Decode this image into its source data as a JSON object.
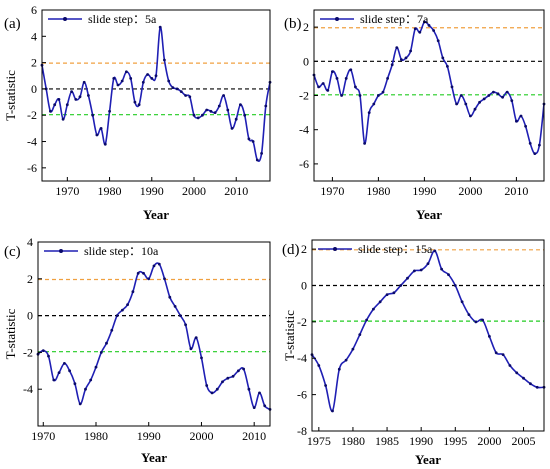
{
  "colors": {
    "series": "#1f1fb4",
    "upper_line": "#f0a040",
    "lower_line": "#22cc22",
    "zero_line": "#000000"
  },
  "chart_data": [
    {
      "type": "line",
      "panel_label": "(a)",
      "legend": "slide step：5a",
      "legend_position": "top-left",
      "xlabel": "Year",
      "ylabel": "T-statistic",
      "xlim": [
        1964,
        2018
      ],
      "ylim": [
        -7,
        6
      ],
      "xticks": [
        1970,
        1980,
        1990,
        2000,
        2010
      ],
      "yticks": [
        -6,
        -4,
        -2,
        0,
        2,
        4,
        6
      ],
      "reference_lines": [
        1.96,
        0,
        -1.96
      ],
      "x": [
        1964,
        1965,
        1966,
        1967,
        1968,
        1969,
        1970,
        1971,
        1972,
        1973,
        1974,
        1975,
        1976,
        1977,
        1978,
        1979,
        1980,
        1981,
        1982,
        1983,
        1984,
        1985,
        1986,
        1987,
        1988,
        1989,
        1990,
        1991,
        1992,
        1993,
        1994,
        1995,
        1996,
        1997,
        1998,
        1999,
        2000,
        2001,
        2002,
        2003,
        2004,
        2005,
        2006,
        2007,
        2008,
        2009,
        2010,
        2011,
        2012,
        2013,
        2014,
        2015,
        2016,
        2017,
        2018
      ],
      "y": [
        1.8,
        0.0,
        -1.7,
        -1.2,
        -0.8,
        -2.3,
        -1.2,
        -0.2,
        -0.8,
        -0.6,
        0.5,
        -0.5,
        -2.0,
        -3.5,
        -3.0,
        -4.2,
        -1.7,
        0.8,
        0.3,
        0.6,
        1.3,
        0.8,
        -1.0,
        -1.2,
        0.5,
        1.1,
        0.8,
        1.0,
        4.7,
        2.2,
        0.6,
        0.1,
        0.0,
        -0.2,
        -0.5,
        -0.6,
        -2.0,
        -2.2,
        -2.0,
        -1.6,
        -1.7,
        -1.8,
        -1.3,
        -0.5,
        -1.6,
        -3.0,
        -2.3,
        -1.2,
        -2.0,
        -3.8,
        -4.0,
        -5.4,
        -4.9,
        -1.3,
        0.5
      ]
    },
    {
      "type": "line",
      "panel_label": "(b)",
      "legend": "slide step：7a",
      "legend_position": "top-left",
      "xlabel": "Year",
      "ylabel": "",
      "xlim": [
        1966,
        2016
      ],
      "ylim": [
        -7,
        3
      ],
      "xticks": [
        1970,
        1980,
        1990,
        2000,
        2010
      ],
      "yticks": [
        -6,
        -4,
        -2,
        0,
        2
      ],
      "reference_lines": [
        1.96,
        0,
        -1.96
      ],
      "x": [
        1966,
        1967,
        1968,
        1969,
        1970,
        1971,
        1972,
        1973,
        1974,
        1975,
        1976,
        1977,
        1978,
        1979,
        1980,
        1981,
        1982,
        1983,
        1984,
        1985,
        1986,
        1987,
        1988,
        1989,
        1990,
        1991,
        1992,
        1993,
        1994,
        1995,
        1996,
        1997,
        1998,
        1999,
        2000,
        2001,
        2002,
        2003,
        2004,
        2005,
        2006,
        2007,
        2008,
        2009,
        2010,
        2011,
        2012,
        2013,
        2014,
        2015,
        2016
      ],
      "y": [
        -0.8,
        -1.5,
        -1.3,
        -1.7,
        -0.6,
        -1.0,
        -2.0,
        -1.0,
        -0.5,
        -1.5,
        -2.0,
        -4.8,
        -3.0,
        -2.5,
        -2.0,
        -1.8,
        -1.0,
        -0.2,
        0.8,
        0.1,
        0.2,
        0.6,
        1.9,
        1.7,
        2.3,
        2.1,
        1.8,
        1.2,
        0.2,
        -0.3,
        -1.5,
        -2.5,
        -2.0,
        -2.5,
        -3.2,
        -2.8,
        -2.4,
        -2.2,
        -2.0,
        -1.8,
        -1.9,
        -2.1,
        -1.8,
        -2.3,
        -3.5,
        -3.2,
        -3.8,
        -4.8,
        -5.4,
        -4.9,
        -2.5
      ]
    },
    {
      "type": "line",
      "panel_label": "(c)",
      "legend": "slide step：10a",
      "legend_position": "top-left",
      "xlabel": "Year",
      "ylabel": "T-statistic",
      "xlim": [
        1969,
        2013
      ],
      "ylim": [
        -6,
        4
      ],
      "xticks": [
        1970,
        1980,
        1990,
        2000,
        2010
      ],
      "yticks": [
        -4,
        -2,
        0,
        2,
        4
      ],
      "reference_lines": [
        1.96,
        0,
        -1.96
      ],
      "x": [
        1969,
        1970,
        1971,
        1972,
        1973,
        1974,
        1975,
        1976,
        1977,
        1978,
        1979,
        1980,
        1981,
        1982,
        1983,
        1984,
        1985,
        1986,
        1987,
        1988,
        1989,
        1990,
        1991,
        1992,
        1993,
        1994,
        1995,
        1996,
        1997,
        1998,
        1999,
        2000,
        2001,
        2002,
        2003,
        2004,
        2005,
        2006,
        2007,
        2008,
        2009,
        2010,
        2011,
        2012,
        2013
      ],
      "y": [
        -2.1,
        -1.9,
        -2.2,
        -3.5,
        -3.1,
        -2.6,
        -3.0,
        -3.7,
        -4.8,
        -4.0,
        -3.5,
        -2.8,
        -2.0,
        -1.5,
        -0.8,
        0.0,
        0.3,
        0.6,
        1.3,
        2.3,
        2.3,
        2.0,
        2.7,
        2.8,
        2.0,
        1.0,
        0.5,
        0.0,
        -0.5,
        -1.8,
        -1.2,
        -2.3,
        -3.8,
        -4.2,
        -4.0,
        -3.6,
        -3.4,
        -3.3,
        -3.0,
        -2.9,
        -4.0,
        -5.0,
        -4.2,
        -4.9,
        -5.1
      ]
    },
    {
      "type": "line",
      "panel_label": "(d)",
      "legend": "slide step：15a",
      "legend_position": "top-left",
      "xlabel": "Year",
      "ylabel": "T-statistic",
      "xlim": [
        1974,
        2008
      ],
      "ylim": [
        -8,
        2.5
      ],
      "xticks": [
        1975,
        1980,
        1985,
        1990,
        1995,
        2000,
        2005
      ],
      "yticks": [
        -8,
        -6,
        -4,
        -2,
        0,
        2
      ],
      "reference_lines": [
        1.96,
        0,
        -1.96
      ],
      "x": [
        1974,
        1975,
        1976,
        1977,
        1978,
        1979,
        1980,
        1981,
        1982,
        1983,
        1984,
        1985,
        1986,
        1987,
        1988,
        1989,
        1990,
        1991,
        1992,
        1993,
        1994,
        1995,
        1996,
        1997,
        1998,
        1999,
        2000,
        2001,
        2002,
        2003,
        2004,
        2005,
        2006,
        2007,
        2008
      ],
      "y": [
        -3.8,
        -4.4,
        -5.5,
        -6.9,
        -4.6,
        -4.1,
        -3.5,
        -2.7,
        -1.9,
        -1.3,
        -0.9,
        -0.5,
        -0.4,
        0.0,
        0.4,
        0.8,
        0.85,
        1.2,
        1.9,
        0.9,
        0.6,
        0.0,
        -0.9,
        -1.6,
        -2.0,
        -1.9,
        -2.8,
        -3.7,
        -3.8,
        -4.4,
        -4.8,
        -5.1,
        -5.4,
        -5.6,
        -5.6
      ]
    }
  ]
}
